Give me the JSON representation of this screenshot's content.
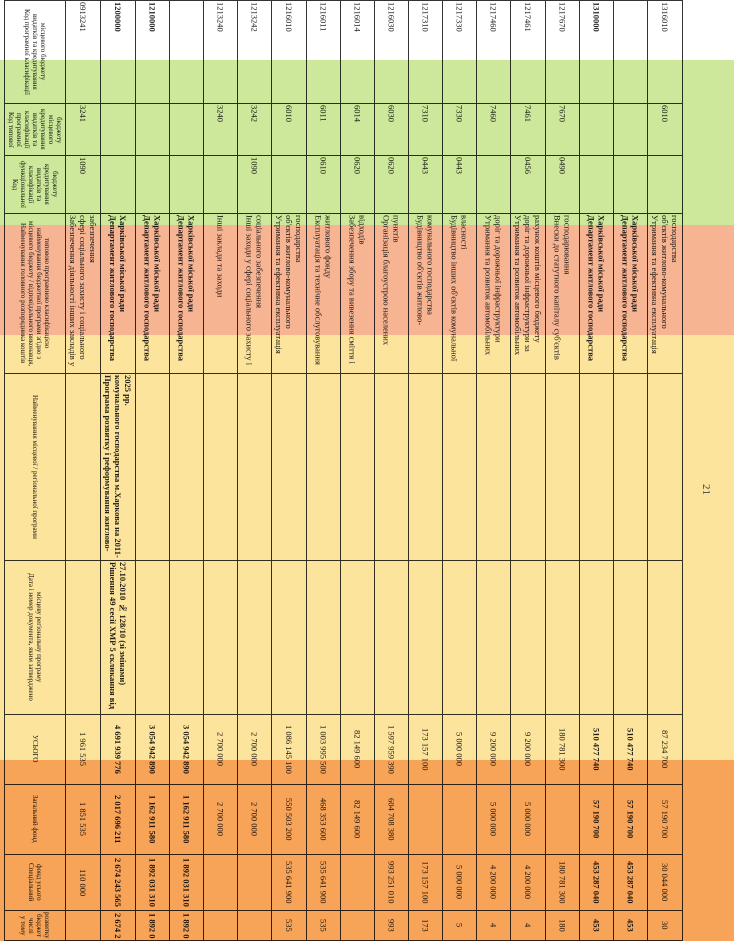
{
  "page_number": "21",
  "table": {
    "header": [
      "Код програмної класифікації видатків та кредитування місцевого бюджету",
      "Код типової програмної класифікації видатків та кредитування місцевого бюджету",
      "Код функціональної класифікації видатків та кредитування бюджету",
      "Найменування головного розпорядника коштів місцевого бюджету / відповідального виконавця, найменування бюджетної програми згідно з типовою програмною класифікацією",
      "Найменування місцевої / регіональної програми",
      "Дата і номер документа, яким затверджено місцеву регіональну програму",
      "УСЬОГО",
      "Загальний фонд",
      "Спеціальний фонд усього",
      "у тому числі бюджет розвитку"
    ],
    "rows": [
      [
        "0913241",
        "3241",
        "1090",
        "Забезпечення діяльності інших закладів у сфері соціального захисту і соціального забезпечення",
        "",
        "",
        "1 961 535",
        "1 851 535",
        "110 000",
        ""
      ],
      [
        "1200000",
        "",
        "",
        "Департамент житлового господарства Харківської міської ради",
        "Програма розвитку і реформування житлово-комунального господарства м.Харкова на 2011-2025 рр.",
        "Рішення 49 сесії ХМР 5 скликання від 27.10.2010 № 128/10 (зі змінами)",
        "4 691 939 776",
        "2 017 696 211",
        "2 674 243 565",
        "2 674 2"
      ],
      [
        "1210000",
        "",
        "",
        "Департамент житлового господарства Харківської міської ради",
        "",
        "",
        "3 054 942 890",
        "1 162 911 580",
        "1 892 031 310",
        "1 892 0"
      ],
      [
        "",
        "",
        "",
        "Департамент житлового господарства Харківської міської ради",
        "",
        "",
        "3 054 942 890",
        "1 162 911 580",
        "1 892 031 310",
        "1 892 0"
      ],
      [
        "1213240",
        "3240",
        "",
        "Інші заклади та заходи",
        "",
        "",
        "2 700 000",
        "2 700 000",
        "",
        ""
      ],
      [
        "1213242",
        "3242",
        "1090",
        "Інші заходи у сфері соціального захисту і соціального забезпечення",
        "",
        "",
        "2 700 000",
        "2 700 000",
        "",
        ""
      ],
      [
        "1216010",
        "6010",
        "",
        "Утримання та ефективна експлуатація об'єктів житлово-комунального господарства",
        "",
        "",
        "1 086 145 100",
        "550 503 200",
        "535 641 900",
        "535"
      ],
      [
        "1216011",
        "6011",
        "0610",
        "Експлуатація та технічне обслуговування житлового фонду",
        "",
        "",
        "1 003 995 500",
        "468 353 600",
        "535 641 900",
        "535"
      ],
      [
        "1216014",
        "6014",
        "0620",
        "Забезпечення збору та вивезення сміття і відходів",
        "",
        "",
        "82 149 600",
        "82 149 600",
        "",
        ""
      ],
      [
        "1216030",
        "6030",
        "0620",
        "Організація благоустрою населених пунктів",
        "",
        "",
        "1 597 959 390",
        "604 708 380",
        "993 251 010",
        "993"
      ],
      [
        "1217310",
        "7310",
        "0443",
        "Будівництво об'єктів житлово-комунального господарства",
        "",
        "",
        "173 157 100",
        "",
        "173 157 100",
        "173"
      ],
      [
        "1217330",
        "7330",
        "0443",
        "Будівництво інших об'єктів комунальної власності",
        "",
        "",
        "5 000 000",
        "",
        "5 000 000",
        "5"
      ],
      [
        "1217460",
        "7460",
        "",
        "Утримання та розвиток автомобільних доріг та дорожньої інфраструктури",
        "",
        "",
        "9 200 000",
        "5 000 000",
        "4 200 000",
        "4"
      ],
      [
        "1217461",
        "7461",
        "0456",
        "Утримання та розвиток автомобільних доріг та дорожньої інфраструктури за рахунок коштів місцевого бюджету",
        "",
        "",
        "9 200 000",
        "5 000 000",
        "4 200 000",
        "4"
      ],
      [
        "1217670",
        "7670",
        "0490",
        "Внески до статутного капіталу суб'єктів господарювання",
        "",
        "",
        "180 781 300",
        "",
        "180 781 300",
        "180"
      ],
      [
        "1310000",
        "",
        "",
        "Департамент житлового господарства Харківської міської ради",
        "",
        "",
        "510 477 740",
        "57 190 700",
        "453 287 040",
        "453"
      ],
      [
        "",
        "",
        "",
        "Департамент житлового господарства Харківської міської ради",
        "",
        "",
        "510 477 740",
        "57 190 700",
        "453 287 040",
        "453"
      ],
      [
        "1316010",
        "6010",
        "",
        "Утримання та ефективна експлуатація об'єктів житлово-комунального господарства",
        "",
        "",
        "87 234 700",
        "57 190 700",
        "30 044 000",
        "30"
      ]
    ]
  }
}
